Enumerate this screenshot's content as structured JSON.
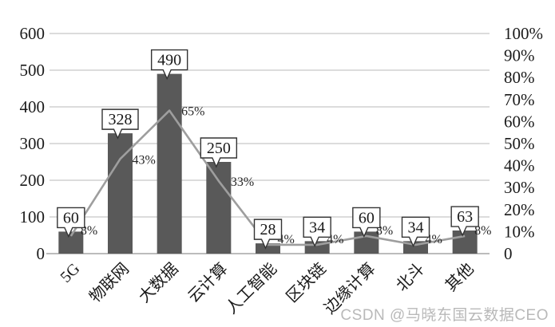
{
  "watermark": {
    "text": "CSDN @马晓东国云数据CEO"
  },
  "colors": {
    "background": "#ffffff",
    "bar": "#595959",
    "line": "#9e9e9e",
    "grid": "#c6c6c6",
    "axis": "#a6a6a6",
    "callout_fill": "#ffffff",
    "callout_border": "#333333",
    "text": "#1a1a1a",
    "watermark": "#b9b9b9"
  },
  "chart_data": {
    "type": "combo-bar-line",
    "title": "",
    "categories": [
      "5G",
      "物联网",
      "大数据",
      "云计算",
      "人工智能",
      "区块链",
      "边缘计算",
      "北斗",
      "其他"
    ],
    "series": [
      {
        "type": "bar",
        "axis": "left",
        "values": [
          60,
          328,
          490,
          250,
          28,
          34,
          60,
          34,
          63
        ],
        "data_labels": [
          "60",
          "328",
          "490",
          "250",
          "28",
          "34",
          "60",
          "34",
          "63"
        ],
        "label_style": "callout"
      },
      {
        "type": "line",
        "axis": "right",
        "values": [
          8,
          43,
          65,
          33,
          4,
          4,
          8,
          4,
          8
        ],
        "data_labels": [
          "8%",
          "43%",
          "65%",
          "33%",
          "4%",
          "4%",
          "8%",
          "4%",
          "8%"
        ],
        "label_style": "right"
      }
    ],
    "left_axis": {
      "min": 0,
      "max": 600,
      "ticks": [
        "0",
        "100",
        "200",
        "300",
        "400",
        "500",
        "600"
      ]
    },
    "right_axis": {
      "min": 0,
      "max": 100,
      "ticks": [
        "0",
        "10%",
        "20%",
        "30%",
        "40%",
        "50%",
        "60%",
        "70%",
        "80%",
        "90%",
        "100%"
      ]
    },
    "grid": true,
    "legend": false
  }
}
